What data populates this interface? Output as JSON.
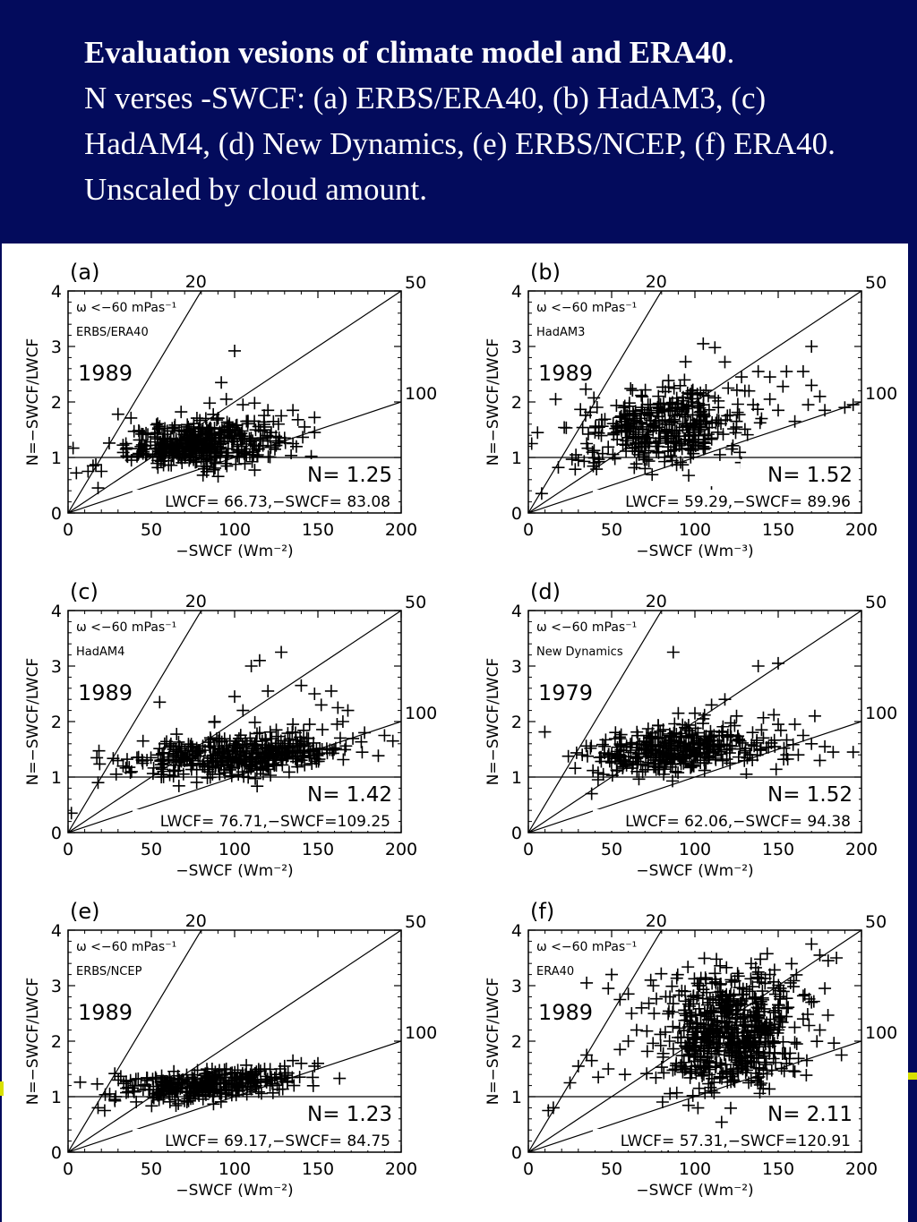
{
  "header": {
    "title": "Evaluation vesions of climate model and ERA40",
    "title_period": ".",
    "description": "N verses -SWCF: (a) ERBS/ERA40, (b) HadAM3, (c) HadAM4, (d) New Dynamics, (e) ERBS/NCEP, (f) ERA40. Unscaled by cloud amount."
  },
  "colors": {
    "header_bg": "#030b5c",
    "header_text": "#ffffff",
    "plot_ink": "#000000"
  },
  "chart_data": [
    {
      "type": "scatter",
      "panel_label": "(a)",
      "omega_label": "ω <−60 mPas⁻¹",
      "dataset": "ERBS/ERA40",
      "year": "1989",
      "n_label": "N=  1.25",
      "stats_label": "LWCF=  66.73,−SWCF=  83.08",
      "xlabel": "−SWCF (Wm⁻²)",
      "ylabel": "N=−SWCF/LWCF",
      "xlim": [
        0,
        200
      ],
      "ylim": [
        0,
        4
      ],
      "xticks": [
        "0",
        "50",
        "100",
        "150",
        "200"
      ],
      "yticks": [
        "0",
        "1",
        "2",
        "3",
        "4"
      ],
      "reference_lines": [
        {
          "label": "20",
          "lwcf": 20
        },
        {
          "label": "50",
          "lwcf": 50
        },
        {
          "label": "100",
          "lwcf": 100
        }
      ],
      "cluster": {
        "cx": 80,
        "cy": 1.25,
        "sx": 22,
        "sy": 0.2,
        "count": 420
      },
      "points": [
        [
          5,
          0.72
        ],
        [
          12,
          0.75
        ],
        [
          15,
          0.85
        ],
        [
          18,
          0.45
        ],
        [
          20,
          0.75
        ],
        [
          30,
          1.78
        ],
        [
          38,
          0.95
        ],
        [
          42,
          1.05
        ],
        [
          45,
          1.42
        ],
        [
          92,
          2.35
        ],
        [
          100,
          2.92
        ],
        [
          108,
          1.65
        ],
        [
          112,
          1.98
        ],
        [
          120,
          1.85
        ],
        [
          128,
          1.75
        ],
        [
          135,
          1.85
        ],
        [
          138,
          1.68
        ],
        [
          142,
          1.55
        ],
        [
          148,
          1.72
        ],
        [
          148,
          1.45
        ],
        [
          118,
          1.55
        ],
        [
          130,
          1.35
        ],
        [
          122,
          1.45
        ],
        [
          95,
          2.05
        ],
        [
          105,
          1.95
        ],
        [
          85,
          1.98
        ],
        [
          135,
          1.25
        ]
      ]
    },
    {
      "type": "scatter",
      "panel_label": "(b)",
      "omega_label": "ω <−60 mPas⁻¹",
      "dataset": "HadAM3",
      "year": "1989",
      "n_label": "N=  1.52",
      "stats_label": "LWCF=  59.29,−SWCF=  89.96",
      "xlabel": "−SWCF (Wm⁻³)",
      "ylabel": "N=−SWCF/LWCF",
      "xlim": [
        0,
        200
      ],
      "ylim": [
        0,
        4
      ],
      "xticks": [
        "0",
        "50",
        "100",
        "150",
        "200"
      ],
      "yticks": [
        "0",
        "1",
        "2",
        "3",
        "4"
      ],
      "reference_lines": [
        {
          "label": "20",
          "lwcf": 20
        },
        {
          "label": "50",
          "lwcf": 50
        },
        {
          "label": "100",
          "lwcf": 100
        }
      ],
      "cluster": {
        "cx": 80,
        "cy": 1.55,
        "sx": 24,
        "sy": 0.35,
        "count": 380
      },
      "points": [
        [
          2,
          1.25
        ],
        [
          8,
          0.35
        ],
        [
          18,
          0.82
        ],
        [
          30,
          0.95
        ],
        [
          35,
          1.25
        ],
        [
          40,
          1.45
        ],
        [
          105,
          3.05
        ],
        [
          112,
          2.98
        ],
        [
          170,
          3.0
        ],
        [
          118,
          2.72
        ],
        [
          128,
          2.45
        ],
        [
          138,
          2.55
        ],
        [
          145,
          2.45
        ],
        [
          155,
          2.55
        ],
        [
          165,
          2.55
        ],
        [
          170,
          2.3
        ],
        [
          175,
          2.1
        ],
        [
          168,
          1.95
        ],
        [
          178,
          1.85
        ],
        [
          190,
          1.9
        ],
        [
          195,
          1.95
        ],
        [
          160,
          1.65
        ],
        [
          150,
          1.85
        ],
        [
          140,
          1.7
        ],
        [
          125,
          1.65
        ],
        [
          130,
          2.2
        ],
        [
          135,
          1.95
        ],
        [
          145,
          2.05
        ],
        [
          120,
          2.25
        ],
        [
          110,
          1.35
        ],
        [
          115,
          1.05
        ]
      ]
    },
    {
      "type": "scatter",
      "panel_label": "(c)",
      "omega_label": "ω <−60 mPas⁻¹",
      "dataset": "HadAM4",
      "year": "1989",
      "n_label": "N=  1.42",
      "stats_label": "LWCF=  76.71,−SWCF=109.25",
      "xlabel": "−SWCF (Wm⁻²)",
      "ylabel": "N=−SWCF/LWCF",
      "xlim": [
        0,
        200
      ],
      "ylim": [
        0,
        4
      ],
      "xticks": [
        "0",
        "50",
        "100",
        "150",
        "200"
      ],
      "yticks": [
        "0",
        "1",
        "2",
        "3",
        "4"
      ],
      "reference_lines": [
        {
          "label": "20",
          "lwcf": 20
        },
        {
          "label": "50",
          "lwcf": 50
        },
        {
          "label": "100",
          "lwcf": 100
        }
      ],
      "cluster": {
        "cx": 105,
        "cy": 1.4,
        "sx": 32,
        "sy": 0.18,
        "count": 420
      },
      "points": [
        [
          2,
          0.35
        ],
        [
          18,
          0.9
        ],
        [
          45,
          1.65
        ],
        [
          55,
          2.35
        ],
        [
          58,
          1.6
        ],
        [
          56,
          1.0
        ],
        [
          60,
          1.3
        ],
        [
          100,
          2.45
        ],
        [
          110,
          3.0
        ],
        [
          115,
          3.1
        ],
        [
          128,
          3.25
        ],
        [
          120,
          2.55
        ],
        [
          105,
          2.2
        ],
        [
          88,
          2.0
        ],
        [
          140,
          2.65
        ],
        [
          148,
          2.5
        ],
        [
          152,
          2.3
        ],
        [
          158,
          2.55
        ],
        [
          162,
          2.25
        ],
        [
          168,
          2.2
        ],
        [
          165,
          2.0
        ],
        [
          178,
          1.8
        ],
        [
          190,
          1.75
        ],
        [
          195,
          1.65
        ],
        [
          145,
          1.95
        ],
        [
          135,
          1.95
        ],
        [
          125,
          1.85
        ],
        [
          115,
          1.8
        ]
      ]
    },
    {
      "type": "scatter",
      "panel_label": "(d)",
      "omega_label": "ω <−60 mPas⁻¹",
      "dataset": "New Dynamics",
      "year": "1979",
      "n_label": "N=  1.52",
      "stats_label": "LWCF=  62.06,−SWCF=  94.38",
      "xlabel": "−SWCF (Wm⁻²)",
      "ylabel": "N=−SWCF/LWCF",
      "xlim": [
        0,
        200
      ],
      "ylim": [
        0,
        4
      ],
      "xticks": [
        "0",
        "50",
        "100",
        "150",
        "200"
      ],
      "yticks": [
        "0",
        "1",
        "2",
        "3",
        "4"
      ],
      "reference_lines": [
        {
          "label": "20",
          "lwcf": 20
        },
        {
          "label": "50",
          "lwcf": 50
        },
        {
          "label": "100",
          "lwcf": 100
        }
      ],
      "cluster": {
        "cx": 90,
        "cy": 1.5,
        "sx": 28,
        "sy": 0.22,
        "count": 380
      },
      "points": [
        [
          38,
          0.7
        ],
        [
          45,
          1.05
        ],
        [
          87,
          3.25
        ],
        [
          138,
          3.0
        ],
        [
          150,
          3.05
        ],
        [
          110,
          2.3
        ],
        [
          118,
          2.4
        ],
        [
          125,
          2.1
        ],
        [
          140,
          1.85
        ],
        [
          150,
          1.95
        ],
        [
          160,
          1.95
        ],
        [
          165,
          1.75
        ],
        [
          170,
          1.6
        ],
        [
          148,
          1.55
        ],
        [
          155,
          1.4
        ],
        [
          175,
          1.3
        ],
        [
          183,
          1.45
        ],
        [
          172,
          2.1
        ],
        [
          178,
          1.55
        ],
        [
          195,
          1.45
        ],
        [
          90,
          2.15
        ],
        [
          100,
          2.15
        ],
        [
          105,
          2.05
        ]
      ]
    },
    {
      "type": "scatter",
      "panel_label": "(e)",
      "omega_label": "ω <−60 mPas⁻¹",
      "dataset": "ERBS/NCEP",
      "year": "1989",
      "n_label": "N=  1.23",
      "stats_label": "LWCF=  69.17,−SWCF=  84.75",
      "xlabel": "−SWCF (Wm⁻²)",
      "ylabel": "N=−SWCF/LWCF",
      "xlim": [
        0,
        200
      ],
      "ylim": [
        0,
        4
      ],
      "xticks": [
        "0",
        "50",
        "100",
        "150",
        "200"
      ],
      "yticks": [
        "0",
        "1",
        "2",
        "3",
        "4"
      ],
      "reference_lines": [
        {
          "label": "20",
          "lwcf": 20
        },
        {
          "label": "50",
          "lwcf": 50
        },
        {
          "label": "100",
          "lwcf": 100
        }
      ],
      "cluster": {
        "cx": 82,
        "cy": 1.22,
        "sx": 24,
        "sy": 0.13,
        "count": 330
      },
      "points": [
        [
          18,
          0.8
        ],
        [
          22,
          0.75
        ],
        [
          25,
          1.05
        ],
        [
          28,
          0.95
        ],
        [
          35,
          1.15
        ],
        [
          40,
          1.2
        ],
        [
          55,
          1.05
        ],
        [
          110,
          1.45
        ],
        [
          118,
          1.5
        ],
        [
          125,
          1.4
        ],
        [
          130,
          1.55
        ],
        [
          135,
          1.65
        ],
        [
          140,
          1.6
        ],
        [
          148,
          1.55
        ],
        [
          150,
          1.6
        ],
        [
          122,
          1.35
        ],
        [
          112,
          1.4
        ],
        [
          95,
          1.5
        ],
        [
          100,
          1.35
        ]
      ]
    },
    {
      "type": "scatter",
      "panel_label": "(f)",
      "omega_label": "ω <−60 mPas⁻¹",
      "dataset": "ERA40",
      "year": "1989",
      "n_label": "N=  2.11",
      "stats_label": "LWCF=  57.31,−SWCF=120.91",
      "xlabel": "−SWCF (Wm⁻²)",
      "ylabel": "N=−SWCF/LWCF",
      "xlim": [
        0,
        200
      ],
      "ylim": [
        0,
        4
      ],
      "xticks": [
        "0",
        "50",
        "100",
        "150",
        "200"
      ],
      "yticks": [
        "0",
        "1",
        "2",
        "3",
        "4"
      ],
      "reference_lines": [
        {
          "label": "20",
          "lwcf": 20
        },
        {
          "label": "50",
          "lwcf": 50
        },
        {
          "label": "100",
          "lwcf": 100
        }
      ],
      "cluster": {
        "cx": 120,
        "cy": 2.15,
        "sx": 20,
        "sy": 0.55,
        "count": 650
      },
      "points": [
        [
          12,
          0.75
        ],
        [
          15,
          0.8
        ],
        [
          25,
          1.25
        ],
        [
          30,
          1.55
        ],
        [
          35,
          1.75
        ],
        [
          38,
          1.65
        ],
        [
          42,
          1.35
        ],
        [
          48,
          1.5
        ],
        [
          55,
          1.85
        ],
        [
          58,
          1.4
        ],
        [
          60,
          2.0
        ],
        [
          65,
          2.2
        ],
        [
          62,
          2.5
        ],
        [
          68,
          2.6
        ],
        [
          55,
          2.75
        ],
        [
          48,
          2.95
        ],
        [
          35,
          3.05
        ],
        [
          50,
          3.2
        ],
        [
          60,
          2.85
        ],
        [
          75,
          3.0
        ],
        [
          85,
          2.8
        ],
        [
          170,
          3.75
        ],
        [
          175,
          3.55
        ],
        [
          180,
          3.45
        ],
        [
          185,
          3.5
        ],
        [
          178,
          2.95
        ],
        [
          170,
          2.7
        ],
        [
          165,
          2.4
        ],
        [
          175,
          2.2
        ],
        [
          188,
          1.75
        ],
        [
          160,
          1.45
        ],
        [
          155,
          1.6
        ],
        [
          145,
          3.2
        ],
        [
          150,
          2.6
        ]
      ]
    }
  ]
}
